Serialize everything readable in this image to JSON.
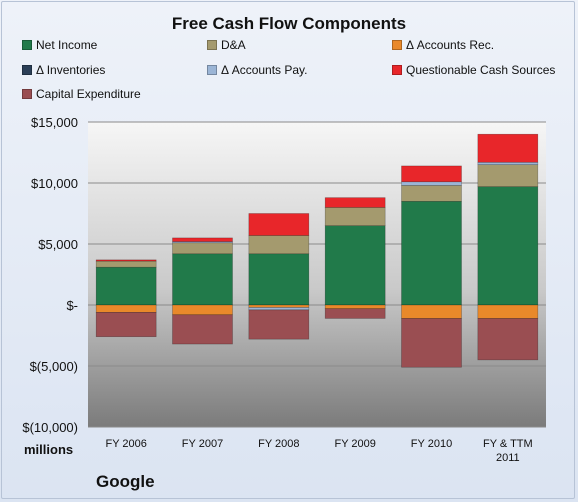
{
  "chart_data": {
    "type": "bar",
    "stacked": true,
    "title": "Free Cash Flow Components",
    "unit_label": "millions",
    "company": "Google",
    "categories": [
      "FY 2006",
      "FY 2007",
      "FY 2008",
      "FY 2009",
      "FY 2010",
      "FY & TTM 2011"
    ],
    "ylim": [
      -10000,
      15000
    ],
    "y_ticks": [
      {
        "value": 15000,
        "label": "$15,000"
      },
      {
        "value": 10000,
        "label": "$10,000"
      },
      {
        "value": 5000,
        "label": "$5,000"
      },
      {
        "value": 0,
        "label": "$-"
      },
      {
        "value": -5000,
        "label": "$(5,000)"
      },
      {
        "value": -10000,
        "label": "$(10,000)"
      }
    ],
    "grid": true,
    "legend_position": "top",
    "series": [
      {
        "name": "Net Income",
        "color": "#217a4a",
        "values": [
          3100,
          4200,
          4200,
          6500,
          8500,
          9700
        ]
      },
      {
        "name": "D&A",
        "color": "#a49a6e",
        "values": [
          500,
          900,
          1500,
          1500,
          1300,
          1800
        ]
      },
      {
        "name": "Δ Accounts Rec.",
        "color": "#e9892a",
        "values": [
          -600,
          -800,
          -200,
          -300,
          -1100,
          -1100
        ]
      },
      {
        "name": "Δ Inventories",
        "color": "#2b3f57",
        "values": [
          0,
          0,
          0,
          0,
          0,
          0
        ]
      },
      {
        "name": "Δ Accounts Pay.",
        "color": "#9bb5d6",
        "values": [
          0,
          100,
          -200,
          0,
          300,
          200
        ]
      },
      {
        "name": "Questionable Cash Sources",
        "color": "#e8262a",
        "values": [
          100,
          300,
          1800,
          800,
          1300,
          2300
        ]
      },
      {
        "name": "Capital Expenditure",
        "color": "#9a4e52",
        "values": [
          -2000,
          -2400,
          -2400,
          -800,
          -4000,
          -3400
        ]
      }
    ]
  }
}
